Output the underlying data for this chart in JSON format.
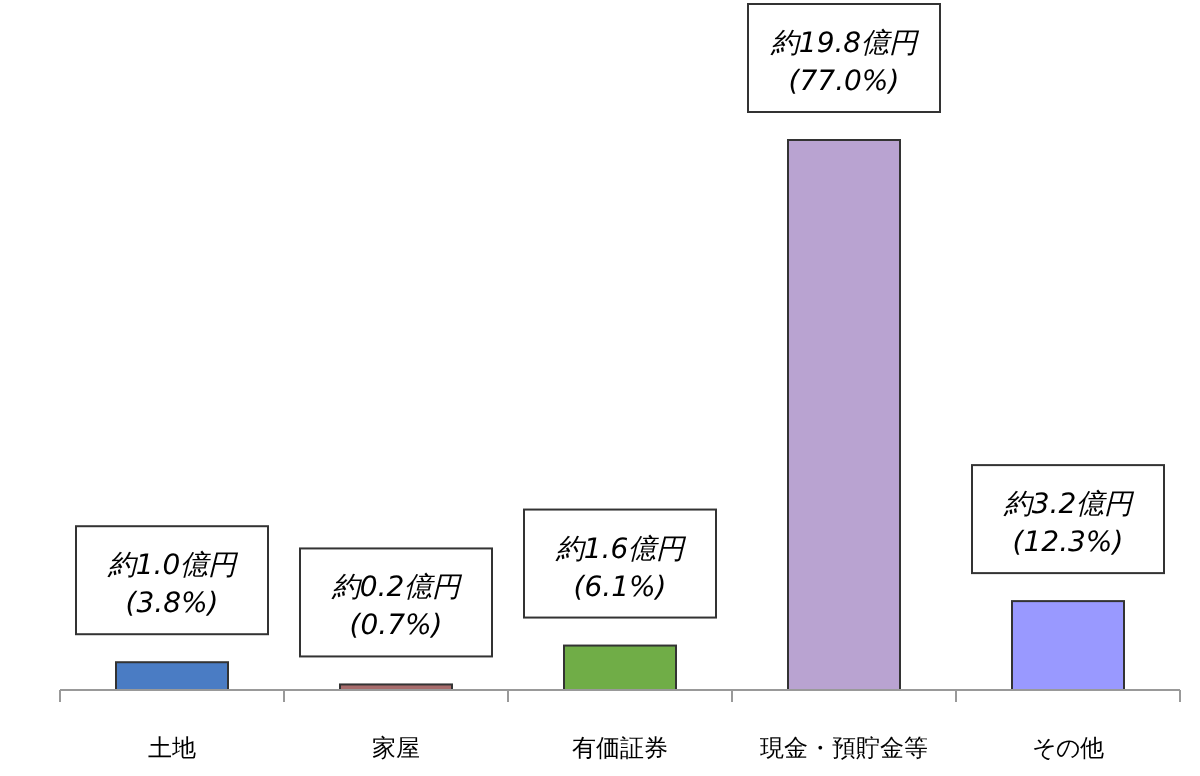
{
  "chart_data": {
    "type": "bar",
    "categories": [
      "土地",
      "家屋",
      "有価証券",
      "現金・預貯金等",
      "その他"
    ],
    "values": [
      1.0,
      0.2,
      1.6,
      19.8,
      3.2
    ],
    "colors": [
      "#4a7cc4",
      "#a86c6c",
      "#70ad47",
      "#b9a3d1",
      "#9999ff"
    ],
    "value_labels": [
      "約1.0億円\n(3.8%)",
      "約0.2億円\n(0.7%)",
      "約1.6億円\n(6.1%)",
      "約19.8億円\n(77.0%)",
      "約3.2億円\n(12.3%)"
    ]
  }
}
